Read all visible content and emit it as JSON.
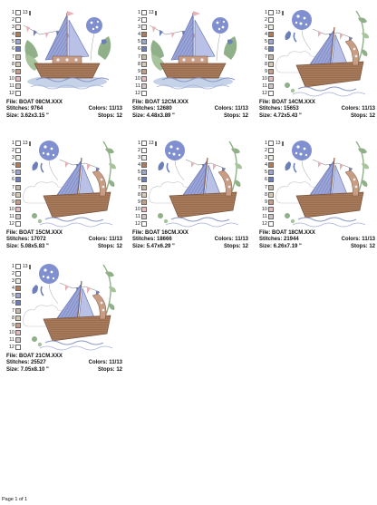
{
  "colors": {
    "swatches": [
      "#ffffff",
      "#ffffff",
      "#f1ece4",
      "#b07c5e",
      "#9aa7cf",
      "#6c7fb8",
      "#c5b9a6",
      "#d7c9b4",
      "#c89d84",
      "#e8b9bd",
      "#cfc3c3",
      "#ffffff",
      "#ffffff"
    ],
    "hull": "#9d7458",
    "sail": "#8792c8",
    "accent": "#5d6cb0",
    "leaf": "#8fb088",
    "pink": "#e6b2b7"
  },
  "designs": [
    {
      "file": "File: BOAT 08CM.XXX",
      "stitches": "Stitches: 9764",
      "size": "Size: 3.62x3.15 \"",
      "colors": "Colors: 11/13",
      "stops": "Stops: 12",
      "variant": "small"
    },
    {
      "file": "File: BOAT 12CM.XXX",
      "stitches": "Stitches: 12680",
      "size": "Size: 4.48x3.89 \"",
      "colors": "Colors: 11/13",
      "stops": "Stops: 12",
      "variant": "small"
    },
    {
      "file": "File: BOAT 14CM.XXX",
      "stitches": "Stitches: 15653",
      "size": "Size: 4.72x5.43 \"",
      "colors": "Colors: 11/13",
      "stops": "Stops: 12",
      "variant": "large"
    },
    {
      "file": "File: BOAT 15CM.XXX",
      "stitches": "Stitches: 17072",
      "size": "Size: 5.08x5.83 \"",
      "colors": "Colors: 11/13",
      "stops": "Stops: 12",
      "variant": "large"
    },
    {
      "file": "File: BOAT 16CM.XXX",
      "stitches": "Stitches: 18666",
      "size": "Size: 5.47x6.29 \"",
      "colors": "Colors: 11/13",
      "stops": "Stops: 12",
      "variant": "large"
    },
    {
      "file": "File: BOAT 18CM.XXX",
      "stitches": "Stitches: 21944",
      "size": "Size: 6.26x7.19 \"",
      "colors": "Colors: 11/13",
      "stops": "Stops: 12",
      "variant": "large"
    },
    {
      "file": "File: BOAT 21CM.XXX",
      "stitches": "Stitches: 25527",
      "size": "Size: 7.05x8.10 \"",
      "colors": "Colors: 11/13",
      "stops": "Stops: 12",
      "variant": "large"
    }
  ],
  "footer": "Page 1 of 1"
}
